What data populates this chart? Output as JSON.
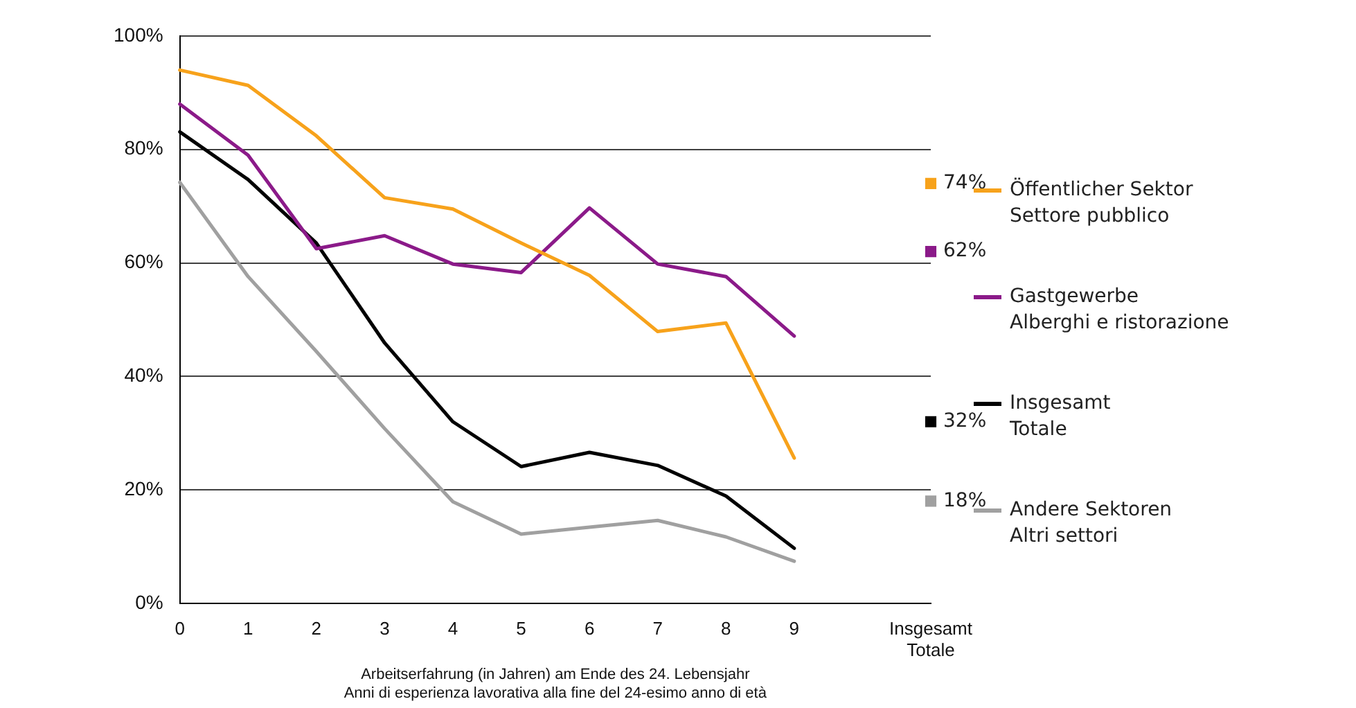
{
  "chart_data": {
    "type": "line",
    "categories": [
      "0",
      "1",
      "2",
      "3",
      "4",
      "5",
      "6",
      "7",
      "8",
      "9",
      null,
      "Insgesamt Totale"
    ],
    "xlabel": "Arbeitserfahrung (in Jahren) am Ende des 24. Lebensjahr\nAnni di esperienza lavorativa alla fine del 24-esimo anno di età",
    "ylim": [
      0,
      100
    ],
    "yticks": [
      {
        "value": 0,
        "label": "0%"
      },
      {
        "value": 20,
        "label": "20%"
      },
      {
        "value": 40,
        "label": "40%"
      },
      {
        "value": 60,
        "label": "60%"
      },
      {
        "value": 80,
        "label": "80%"
      },
      {
        "value": 100,
        "label": "100%"
      }
    ],
    "grid": "y",
    "legend": "right",
    "marker": "none",
    "line_style": "solid",
    "series": [
      {
        "name": "Öffentlicher Sektor\nSettore pubblico",
        "color": "#f7a21b",
        "values": [
          94,
          91.3,
          82.4,
          71.5,
          69.5,
          63.5,
          57.8,
          47.9,
          49.4,
          25.6,
          null,
          null
        ]
      },
      {
        "name": "Gastgewerbe\nAlberghi e ristorazione",
        "color": "#8b1a89",
        "values": [
          88,
          79,
          62.5,
          64.8,
          59.8,
          58.3,
          69.7,
          59.8,
          57.6,
          47.1,
          null,
          null
        ]
      },
      {
        "name": "Insgesamt\nTotale",
        "color": "#000000",
        "values": [
          83.1,
          74.7,
          63.5,
          45.9,
          32,
          24.1,
          26.6,
          24.3,
          18.9,
          9.7,
          null,
          null
        ]
      },
      {
        "name": "Andere Sektoren\nAltri settori",
        "color": "#a0a0a0",
        "values": [
          74.2,
          57.6,
          44.4,
          30.8,
          17.9,
          12.2,
          13.4,
          14.6,
          11.7,
          7.4,
          null,
          null
        ]
      },
      {
        "type": "scatter",
        "marker": "square",
        "color": "#f7a21b",
        "x": [
          "Insgesamt Totale"
        ],
        "values": [
          74
        ],
        "value_labels": [
          "74%"
        ]
      },
      {
        "type": "scatter",
        "marker": "square",
        "color": "#8b1a89",
        "x": [
          "Insgesamt Totale"
        ],
        "values": [
          62
        ],
        "value_labels": [
          "62%"
        ]
      },
      {
        "type": "scatter",
        "marker": "square",
        "color": "#000000",
        "x": [
          "Insgesamt Totale"
        ],
        "values": [
          32
        ],
        "value_labels": [
          "32%"
        ]
      },
      {
        "type": "scatter",
        "marker": "square",
        "color": "#a0a0a0",
        "x": [
          "Insgesamt Totale"
        ],
        "values": [
          18
        ],
        "value_labels": [
          "18%"
        ]
      }
    ]
  }
}
